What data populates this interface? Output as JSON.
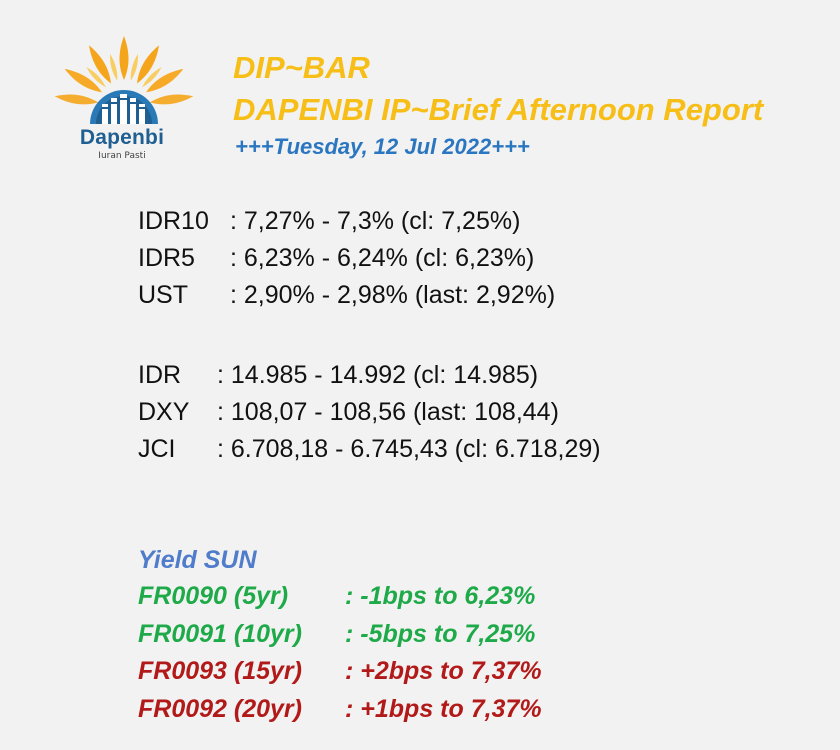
{
  "logo": {
    "name": "Dapenbi",
    "tagline": "Iuran Pasti"
  },
  "header": {
    "title": "DIP~BAR",
    "subtitle": "DAPENBI IP~Brief Afternoon Report",
    "date": "+++Tuesday, 12 Jul 2022+++"
  },
  "rates": [
    {
      "label": "IDR10",
      "value": ": 7,27% - 7,3% (cl: 7,25%)"
    },
    {
      "label": "IDR5",
      "value": ": 6,23% - 6,24% (cl: 6,23%)"
    },
    {
      "label": "UST",
      "value": ": 2,90% - 2,98% (last: 2,92%)"
    }
  ],
  "markets": [
    {
      "label": "IDR",
      "value": ": 14.985 - 14.992 (cl: 14.985)"
    },
    {
      "label": "DXY",
      "value": ": 108,07 - 108,56 (last: 108,44)"
    },
    {
      "label": "JCI",
      "value": ": 6.708,18 - 6.745,43 (cl: 6.718,29)"
    }
  ],
  "yield_sun": {
    "title": "Yield SUN",
    "bonds": [
      {
        "label": "FR0090 (5yr)",
        "value": ": -1bps to 6,23%",
        "color": "#1faa4a"
      },
      {
        "label": "FR0091 (10yr)",
        "value": ": -5bps to 7,25%",
        "color": "#1faa4a"
      },
      {
        "label": "FR0093 (15yr)",
        "value": ": +2bps to 7,37%",
        "color": "#b21a1a"
      },
      {
        "label": "FR0092 (20yr)",
        "value": ": +1bps to 7,37%",
        "color": "#b21a1a"
      }
    ]
  },
  "colors": {
    "background": "#f3f2f2",
    "title": "#f6be16",
    "date": "#2b76c0",
    "yield_title": "#4f7ccb",
    "logo_blue": "#1f5f92",
    "logo_orange": "#f5a51b"
  },
  "icons": [
    "sun-rays-icon",
    "building-skyline-icon"
  ]
}
